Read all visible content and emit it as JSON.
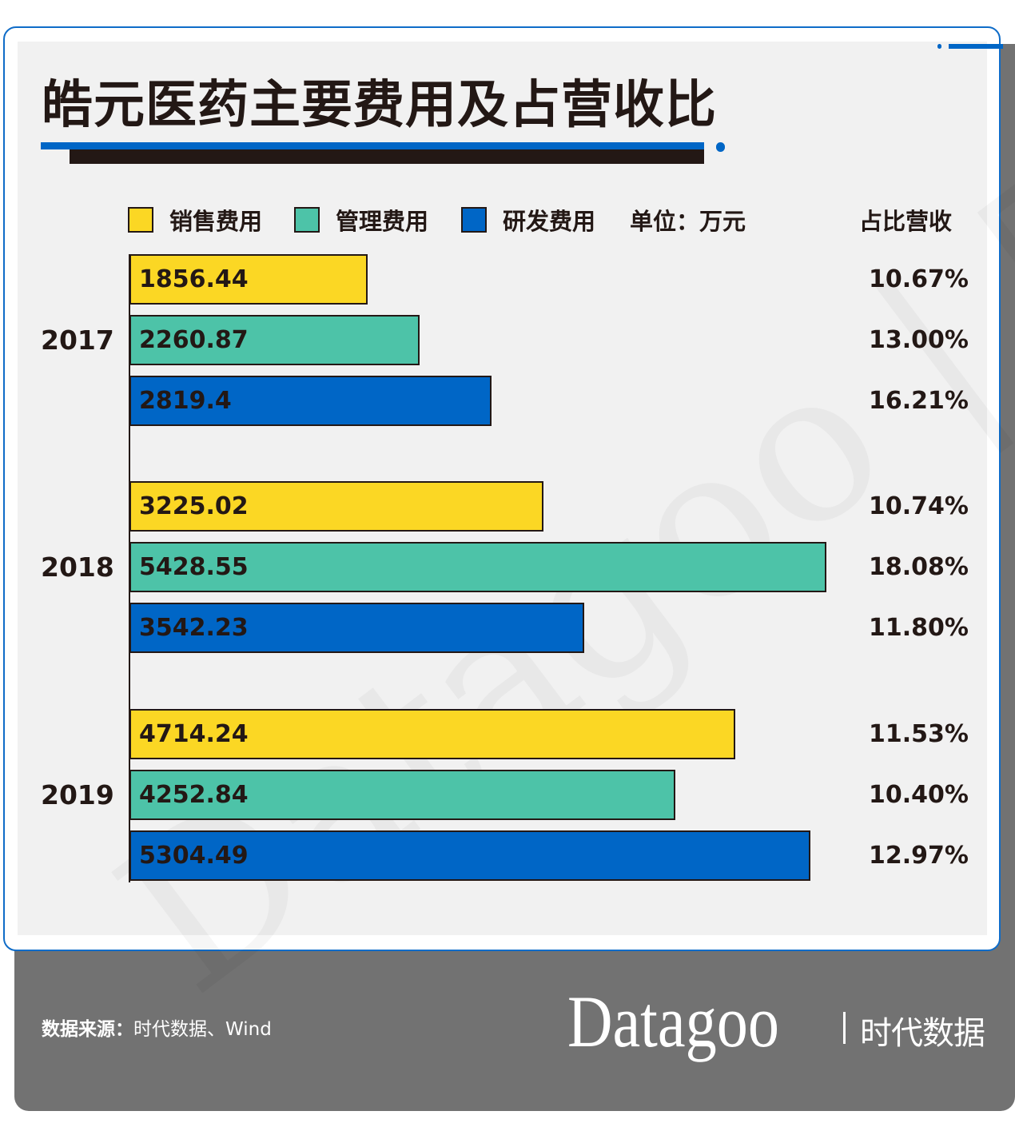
{
  "title": "皓元医药主要费用及占营收比",
  "legend": {
    "unit": "单位：万元",
    "ratio_header": "占比营收"
  },
  "colors": {
    "sales": "#FBD724",
    "admin": "#4DC3A8",
    "rd": "#0066C6",
    "accent": "#0066C6",
    "footer": "#727272"
  },
  "chart_data": {
    "type": "bar",
    "orientation": "horizontal",
    "categories": [
      "2017",
      "2018",
      "2019"
    ],
    "series": [
      {
        "name": "销售费用",
        "values": [
          1856.44,
          3225.02,
          4714.24
        ],
        "ratio": [
          "10.67%",
          "10.74%",
          "11.53%"
        ],
        "color": "#FBD724"
      },
      {
        "name": "管理费用",
        "values": [
          2260.87,
          5428.55,
          4252.84
        ],
        "ratio": [
          "13.00%",
          "18.08%",
          "10.40%"
        ],
        "color": "#4DC3A8"
      },
      {
        "name": "研发费用",
        "values": [
          2819.4,
          3542.23,
          5304.49
        ],
        "ratio": [
          "16.21%",
          "11.80%",
          "12.97%"
        ],
        "color": "#0066C6"
      }
    ],
    "labels": [
      [
        "1856.44",
        "3225.02",
        "4714.24"
      ],
      [
        "2260.87",
        "5428.55",
        "4252.84"
      ],
      [
        "2819.4",
        "3542.23",
        "5304.49"
      ]
    ],
    "xlim": [
      0,
      7000
    ],
    "grid": false,
    "legend_position": "top"
  },
  "footer": {
    "source_label": "数据来源：",
    "source_value": "时代数据、Wind",
    "logo_text": "Datagoo",
    "logo_cn": "时代数据"
  },
  "watermark": "Datagoo | 时代数据"
}
